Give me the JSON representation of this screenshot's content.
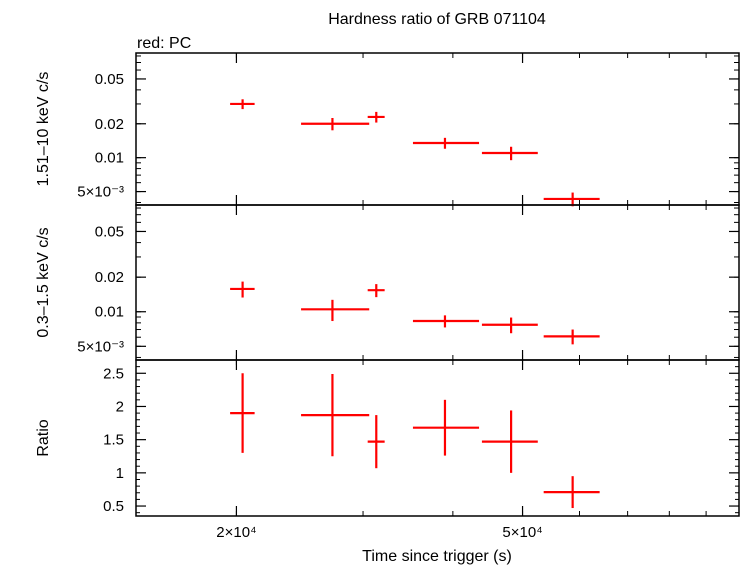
{
  "chart_data": {
    "type": "scatter",
    "title": "Hardness ratio of GRB 071104",
    "legend": "red: PC",
    "xlabel": "Time since trigger (s)",
    "xscale": "log",
    "xlim": [
      14500,
      100000
    ],
    "x_ticks": [
      {
        "value": 20000,
        "label": "2×10⁴"
      },
      {
        "value": 50000,
        "label": "5×10⁴"
      }
    ],
    "series_color": "#ff0000",
    "panels": [
      {
        "name": "hard-band",
        "ylabel": "1.51–10 keV c/s",
        "yscale": "log",
        "ylim": [
          0.0038,
          0.085
        ],
        "y_ticks": [
          {
            "value": 0.005,
            "label": "5×10⁻³"
          },
          {
            "value": 0.01,
            "label": "0.01"
          },
          {
            "value": 0.02,
            "label": "0.02"
          },
          {
            "value": 0.05,
            "label": "0.05"
          }
        ],
        "points": [
          {
            "x": 20400,
            "xerr": [
              800,
              800
            ],
            "y": 0.03,
            "yerr": [
              0.003,
              0.003
            ]
          },
          {
            "x": 27200,
            "xerr": [
              2600,
              3400
            ],
            "y": 0.02,
            "yerr": [
              0.0025,
              0.0025
            ]
          },
          {
            "x": 31300,
            "xerr": [
              850,
              850
            ],
            "y": 0.023,
            "yerr": [
              0.0025,
              0.0025
            ]
          },
          {
            "x": 39000,
            "xerr": [
              3800,
              4500
            ],
            "y": 0.0135,
            "yerr": [
              0.0015,
              0.0015
            ]
          },
          {
            "x": 48200,
            "xerr": [
              4300,
              4300
            ],
            "y": 0.011,
            "yerr": [
              0.0015,
              0.0015
            ]
          },
          {
            "x": 58700,
            "xerr": [
              5200,
              5300
            ],
            "y": 0.0043,
            "yerr": [
              0.0006,
              0.0006
            ]
          }
        ]
      },
      {
        "name": "soft-band",
        "ylabel": "0.3–1.5 keV c/s",
        "yscale": "log",
        "ylim": [
          0.0038,
          0.085
        ],
        "y_ticks": [
          {
            "value": 0.005,
            "label": "5×10⁻³"
          },
          {
            "value": 0.01,
            "label": "0.01"
          },
          {
            "value": 0.02,
            "label": "0.02"
          },
          {
            "value": 0.05,
            "label": "0.05"
          }
        ],
        "points": [
          {
            "x": 20400,
            "xerr": [
              800,
              800
            ],
            "y": 0.0158,
            "yerr": [
              0.0025,
              0.0025
            ]
          },
          {
            "x": 27200,
            "xerr": [
              2600,
              3400
            ],
            "y": 0.0105,
            "yerr": [
              0.0022,
              0.0022
            ]
          },
          {
            "x": 31300,
            "xerr": [
              850,
              850
            ],
            "y": 0.0154,
            "yerr": [
              0.002,
              0.002
            ]
          },
          {
            "x": 39000,
            "xerr": [
              3800,
              4500
            ],
            "y": 0.0083,
            "yerr": [
              0.001,
              0.001
            ]
          },
          {
            "x": 48200,
            "xerr": [
              4300,
              4300
            ],
            "y": 0.0077,
            "yerr": [
              0.0012,
              0.0012
            ]
          },
          {
            "x": 58700,
            "xerr": [
              5200,
              5300
            ],
            "y": 0.0061,
            "yerr": [
              0.0009,
              0.0009
            ]
          }
        ]
      },
      {
        "name": "ratio",
        "ylabel": "Ratio",
        "yscale": "linear",
        "ylim": [
          0.35,
          2.7
        ],
        "y_ticks": [
          {
            "value": 0.5,
            "label": "0.5"
          },
          {
            "value": 1,
            "label": "1"
          },
          {
            "value": 1.5,
            "label": "1.5"
          },
          {
            "value": 2,
            "label": "2"
          },
          {
            "value": 2.5,
            "label": "2.5"
          }
        ],
        "points": [
          {
            "x": 20400,
            "xerr": [
              800,
              800
            ],
            "y": 1.9,
            "yerr": [
              0.6,
              0.6
            ]
          },
          {
            "x": 27200,
            "xerr": [
              2600,
              3400
            ],
            "y": 1.87,
            "yerr": [
              0.62,
              0.62
            ]
          },
          {
            "x": 31300,
            "xerr": [
              850,
              850
            ],
            "y": 1.47,
            "yerr": [
              0.4,
              0.4
            ]
          },
          {
            "x": 39000,
            "xerr": [
              3800,
              4500
            ],
            "y": 1.68,
            "yerr": [
              0.42,
              0.42
            ]
          },
          {
            "x": 48200,
            "xerr": [
              4300,
              4300
            ],
            "y": 1.47,
            "yerr": [
              0.47,
              0.47
            ]
          },
          {
            "x": 58700,
            "xerr": [
              5200,
              5300
            ],
            "y": 0.71,
            "yerr": [
              0.24,
              0.24
            ]
          }
        ]
      }
    ]
  }
}
